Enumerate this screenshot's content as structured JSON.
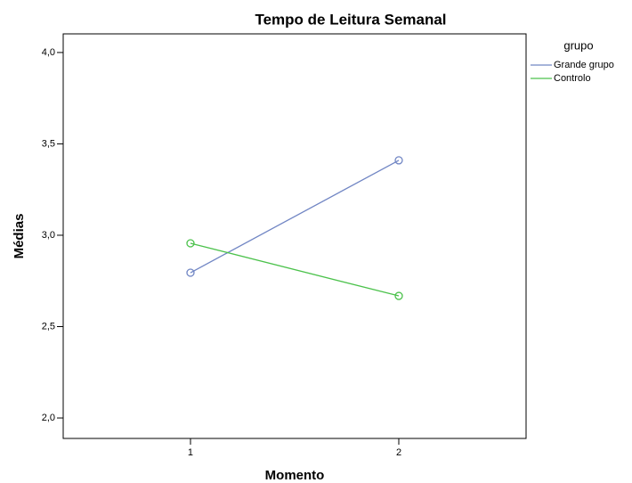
{
  "chart_data": {
    "type": "line",
    "title": "Tempo de Leitura Semanal",
    "x_label": "Momento",
    "y_label": "Médias",
    "x": [
      1,
      2
    ],
    "series": [
      {
        "name": "Grande grupo",
        "color": "#7186c4",
        "values": [
          2.795,
          3.41
        ]
      },
      {
        "name": "Controlo",
        "color": "#4cc24c",
        "values": [
          2.956,
          2.668
        ]
      }
    ],
    "legend_title": "grupo",
    "legend": "right",
    "xlim": [
      0.389,
      2.611
    ],
    "xticks": [
      1,
      2
    ],
    "ylim": [
      1.888,
      4.102
    ],
    "yticks": [
      {
        "value": 2,
        "label": "2,0"
      },
      {
        "value": 2.5,
        "label": "2,5"
      },
      {
        "value": 3,
        "label": "3,0"
      },
      {
        "value": 3.5,
        "label": "3,5"
      },
      {
        "value": 4,
        "label": "4,0"
      }
    ],
    "grid": false
  }
}
